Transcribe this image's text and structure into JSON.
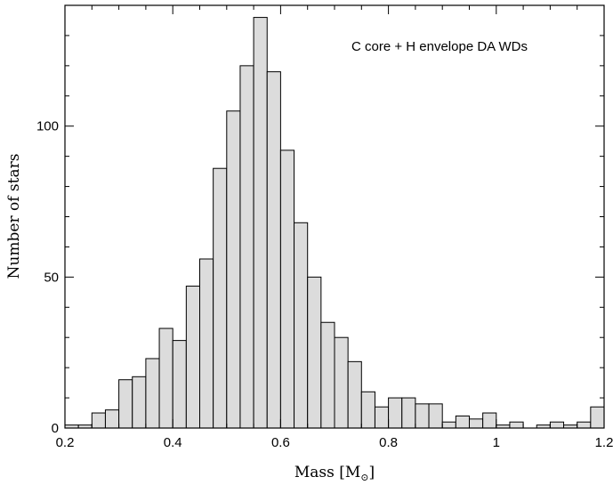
{
  "chart_data": {
    "type": "bar",
    "annotation": "C core + H envelope DA WDs",
    "xlabel": "Mass [M",
    "xlabel_subscript": "⊙",
    "xlabel_close": "]",
    "ylabel": "Number of stars",
    "xlim": [
      0.2,
      1.2
    ],
    "ylim": [
      0,
      140
    ],
    "bin_width": 0.025,
    "x_ticks": [
      "0.2",
      "0.4",
      "0.6",
      "0.8",
      "1",
      "1.2"
    ],
    "y_ticks": [
      "0",
      "50",
      "100"
    ],
    "bins_start": [
      0.2,
      0.225,
      0.25,
      0.275,
      0.3,
      0.325,
      0.35,
      0.375,
      0.4,
      0.425,
      0.45,
      0.475,
      0.5,
      0.525,
      0.55,
      0.575,
      0.6,
      0.625,
      0.65,
      0.675,
      0.7,
      0.725,
      0.75,
      0.775,
      0.8,
      0.825,
      0.85,
      0.875,
      0.9,
      0.925,
      0.95,
      0.975,
      1.0,
      1.025,
      1.05,
      1.075,
      1.1,
      1.125,
      1.15,
      1.175
    ],
    "values": [
      1,
      1,
      5,
      6,
      16,
      17,
      23,
      33,
      29,
      47,
      56,
      86,
      105,
      120,
      136,
      118,
      92,
      68,
      50,
      35,
      30,
      22,
      12,
      7,
      10,
      10,
      8,
      8,
      2,
      4,
      3,
      5,
      1,
      2,
      0,
      1,
      2,
      1,
      2,
      7
    ]
  }
}
